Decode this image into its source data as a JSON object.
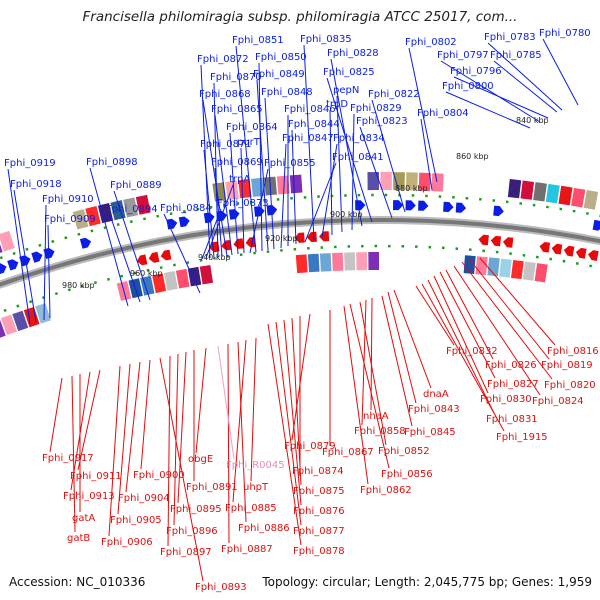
{
  "title": "Francisella philomiragia subsp. philomiragia ATCC 25017, com...",
  "footer": {
    "accession": "Accession: NC_010336",
    "topology": "Topology: circular; Length: 2,045,775 bp; Genes: 1,959"
  },
  "colors": {
    "forward_strand": "#0a1ee6",
    "reverse_strand": "#e60a0a",
    "rna_gene": "#f0a0c8",
    "backbone": "#777777",
    "tick_marks": "#229922",
    "forward_label": "#0a1ee6",
    "reverse_label": "#dd1111",
    "rna_label": "#ee88bb"
  },
  "ticks": [
    "980 kbp",
    "960 kbp",
    "940 kbp",
    "920 kbp",
    "900 kbp",
    "880 kbp",
    "860 kbp",
    "840 kbp"
  ],
  "labels_top": [
    "Fphi_0780",
    "Fphi_0783",
    "Fphi_0785",
    "Fphi_0796",
    "Fphi_0797",
    "Fphi_0800",
    "Fphi_0802",
    "Fphi_0804",
    "Fphi_0822",
    "Fphi_0823",
    "Fphi_0825",
    "Fphi_0828",
    "Fphi_0829",
    "pepN",
    "trpD",
    "Fphi_0834",
    "Fphi_0835",
    "Fphi_0841",
    "Fphi_0844",
    "Fphi_0846",
    "Fphi_0847",
    "Fphi_0848",
    "Fphi_0849",
    "Fphi_0850",
    "Fphi_0851",
    "Fphi_0855",
    "purT",
    "Fphi_0864",
    "Fphi_0865",
    "Fphi_0868",
    "Fphi_0869",
    "Fphi_0870",
    "Fphi_0871",
    "Fphi_0872",
    "trpA",
    "Fphi_0873",
    "Fphi_0884",
    "Fphi_0889",
    "Fphi_0894",
    "Fphi_0898",
    "Fphi_0909",
    "Fphi_0910",
    "Fphi_0918",
    "Fphi_0919"
  ],
  "labels_bottom": [
    "Fphi_0816",
    "Fphi_0819",
    "Fphi_0820",
    "Fphi_0824",
    "Fphi_0826",
    "Fphi_0827",
    "Fphi_0830",
    "Fphi_0831",
    "Fphi_1915",
    "Fphi_0832",
    "dnaA",
    "Fphi_0843",
    "Fphi_0845",
    "nhaA",
    "Fphi_0858",
    "Fphi_0852",
    "Fphi_0856",
    "Fphi_0862",
    "Fphi_0867",
    "Fphi_0879",
    "Fphi_0874",
    "Fphi_0875",
    "Fphi_0876",
    "Fphi_0877",
    "Fphi_0878",
    "uhpT",
    "Fphi_0885",
    "Fphi_0886",
    "Fphi_0887",
    "Fphi_R0045",
    "obgE",
    "Fphi_0891",
    "Fphi_0895",
    "Fphi_0896",
    "Fphi_0897",
    "Fphi_0893",
    "Fphi_0900",
    "Fphi_0904",
    "Fphi_0905",
    "Fphi_0906",
    "Fphi_0911",
    "Fphi_0913",
    "gatA",
    "gatB",
    "Fphi_0917"
  ]
}
